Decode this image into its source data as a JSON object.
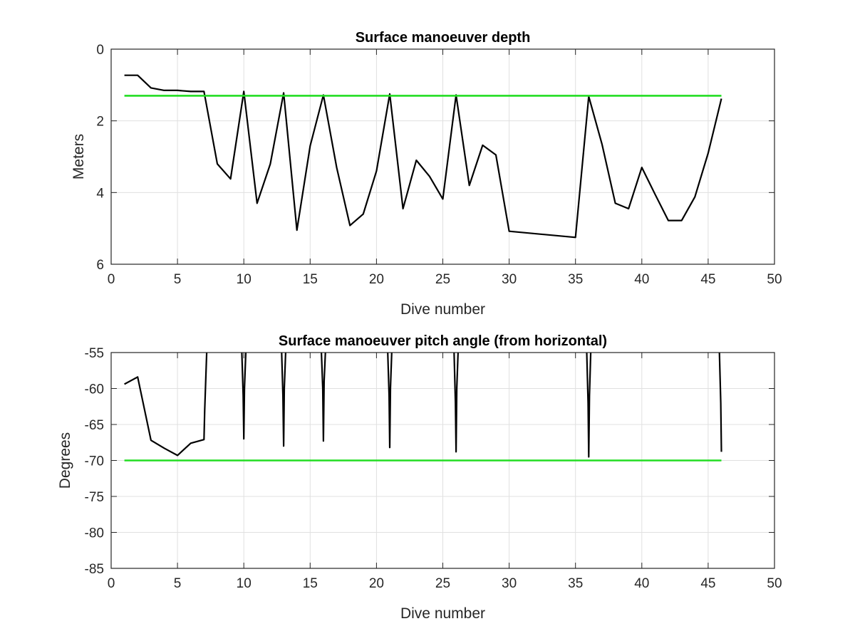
{
  "chart_data": [
    {
      "type": "line",
      "title": "Surface manoeuver depth",
      "xlabel": "Dive number",
      "ylabel": "Meters",
      "xlim": [
        0,
        50
      ],
      "ylim": [
        0,
        6
      ],
      "y_reversed": true,
      "xticks": [
        0,
        5,
        10,
        15,
        20,
        25,
        30,
        35,
        40,
        45,
        50
      ],
      "yticks": [
        0,
        2,
        4,
        6
      ],
      "grid": true,
      "series": [
        {
          "color": "#000000",
          "x": [
            1,
            2,
            3,
            4,
            5,
            6,
            7,
            8,
            9,
            10,
            11,
            12,
            13,
            14,
            15,
            16,
            17,
            18,
            19,
            20,
            21,
            22,
            23,
            24,
            25,
            26,
            27,
            28,
            29,
            30,
            35,
            36,
            37,
            38,
            39,
            40,
            41,
            42,
            43,
            44,
            45,
            46
          ],
          "y": [
            0.73,
            0.73,
            1.08,
            1.15,
            1.15,
            1.18,
            1.18,
            3.2,
            3.62,
            1.18,
            4.3,
            3.2,
            1.22,
            5.05,
            2.7,
            1.28,
            3.3,
            4.92,
            4.6,
            3.4,
            1.25,
            4.45,
            3.1,
            3.55,
            4.18,
            1.28,
            3.8,
            2.68,
            2.95,
            5.08,
            5.25,
            1.32,
            2.65,
            4.3,
            4.45,
            3.3,
            4.05,
            4.78,
            4.78,
            4.12,
            2.9,
            1.38
          ]
        },
        {
          "color": "#22dd22",
          "x": [
            1,
            46
          ],
          "y": [
            1.3,
            1.3
          ]
        }
      ]
    },
    {
      "type": "line",
      "title": "Surface manoeuver pitch angle (from horizontal)",
      "xlabel": "Dive number",
      "ylabel": "Degrees",
      "xlim": [
        0,
        50
      ],
      "ylim": [
        -85,
        -55
      ],
      "xticks": [
        0,
        5,
        10,
        15,
        20,
        25,
        30,
        35,
        40,
        45,
        50
      ],
      "yticks": [
        -55,
        -60,
        -65,
        -70,
        -75,
        -80,
        -85
      ],
      "grid": true,
      "series": [
        {
          "color": "#000000",
          "x": [
            1,
            2,
            3,
            4,
            5,
            6,
            7,
            7.05,
            7.2,
            7.3,
            9.8,
            9.85,
            9.95,
            10.0,
            10.05,
            10.15,
            10.2,
            12.8,
            12.85,
            12.95,
            13.0,
            13.05,
            13.15,
            13.2,
            15.8,
            15.85,
            15.95,
            16.0,
            16.05,
            16.15,
            16.2,
            20.8,
            20.85,
            20.95,
            21.0,
            21.05,
            21.15,
            21.2,
            25.8,
            25.85,
            25.95,
            26.0,
            26.05,
            26.15,
            26.2,
            35.8,
            35.85,
            35.95,
            36.0,
            36.05,
            36.15,
            36.2,
            45.8,
            45.85,
            45.95,
            46.0
          ],
          "y": [
            -59.4,
            -58.4,
            -67.2,
            -68.3,
            -69.3,
            -67.6,
            -67.1,
            -63.0,
            -55.0,
            -53.0,
            -53.0,
            -55.0,
            -61.0,
            -67.0,
            -60.0,
            -55.0,
            -53.0,
            -53.0,
            -55.0,
            -61.0,
            -68.0,
            -60.0,
            -55.0,
            -53.0,
            -53.0,
            -55.0,
            -60.0,
            -67.3,
            -59.0,
            -55.0,
            -53.0,
            -53.0,
            -55.0,
            -61.0,
            -68.2,
            -60.0,
            -55.0,
            -53.0,
            -53.0,
            -55.0,
            -62.0,
            -68.8,
            -60.0,
            -55.0,
            -53.0,
            -53.0,
            -55.0,
            -62.0,
            -69.5,
            -61.0,
            -55.0,
            -53.0,
            -53.0,
            -55.0,
            -62.0,
            -68.8
          ]
        },
        {
          "color": "#22dd22",
          "x": [
            1,
            46
          ],
          "y": [
            -70,
            -70
          ]
        }
      ]
    }
  ]
}
